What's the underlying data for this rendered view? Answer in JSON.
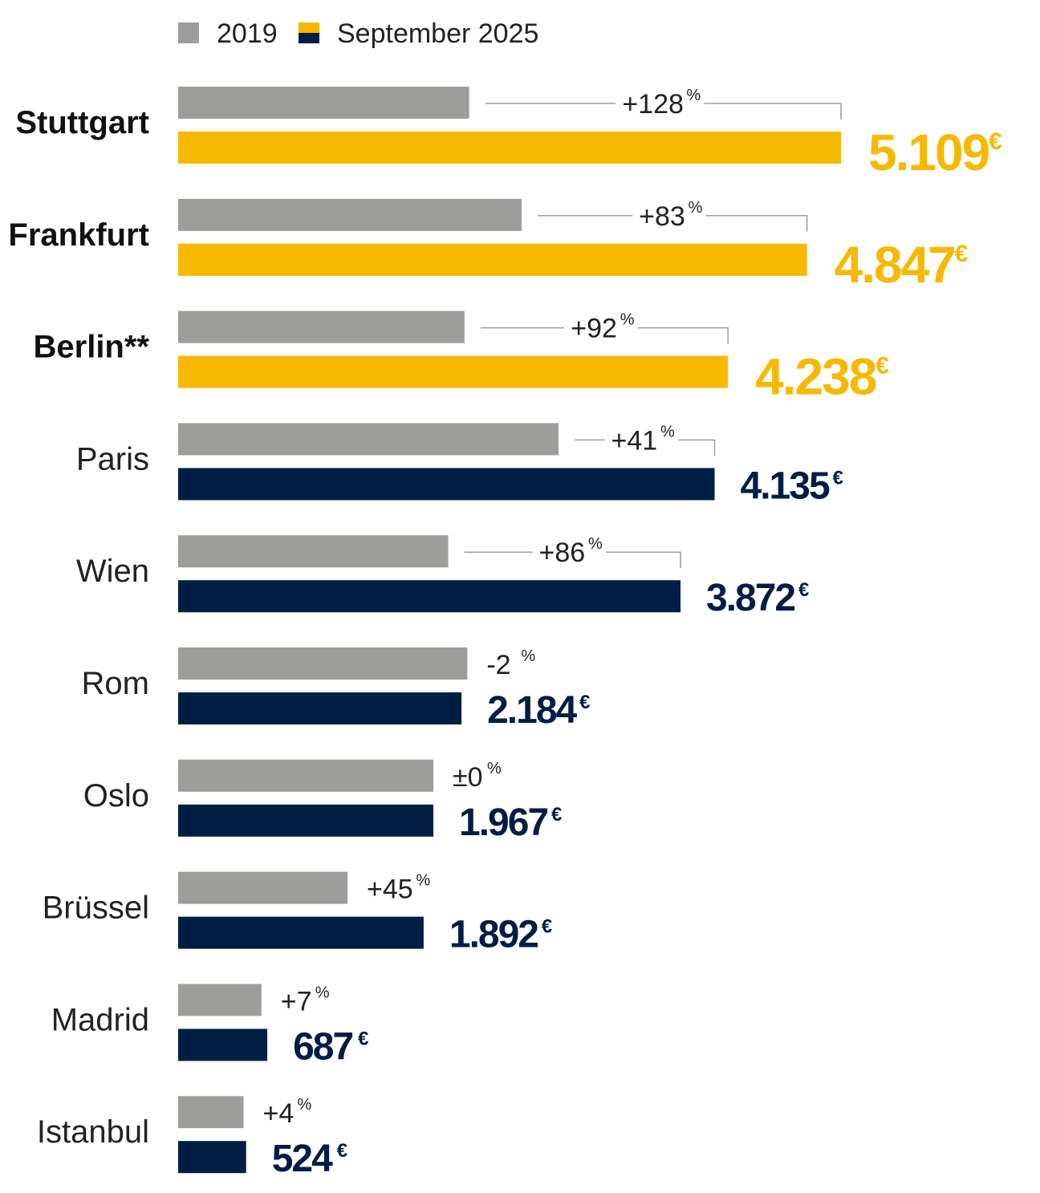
{
  "colors": {
    "bar_2019": "#9d9d9c",
    "bar_2025_highlight": "#f7b800",
    "bar_2025_default": "#001d45",
    "bracket_line": "#9d9d9c",
    "text_dark": "#111111"
  },
  "legend": [
    {
      "label": "2019",
      "color": "#9d9d9c"
    },
    {
      "label": "September 2025",
      "colors": [
        "#f7b800",
        "#001d45"
      ]
    }
  ],
  "chart_data": {
    "type": "bar",
    "orientation": "horizontal",
    "unit": "€",
    "change_unit": "%",
    "series": [
      {
        "name": "2019",
        "values": [
          2243,
          2648,
          2207,
          2932,
          2082,
          2229,
          1967,
          1305,
          642,
          504
        ]
      },
      {
        "name": "September 2025",
        "values": [
          5109,
          4847,
          4238,
          4135,
          3872,
          2184,
          1967,
          1892,
          687,
          524
        ]
      }
    ],
    "categories": [
      "Stuttgart",
      "Frankfurt",
      "Berlin**",
      "Paris",
      "Wien",
      "Rom",
      "Oslo",
      "Brüssel",
      "Madrid",
      "Istanbul"
    ],
    "rows": [
      {
        "city": "Stuttgart",
        "bold": true,
        "highlight": true,
        "value_2019": 2243,
        "value_2025": 5109,
        "value_label": "5.109",
        "change": "+128",
        "bracket": true
      },
      {
        "city": "Frankfurt",
        "bold": true,
        "highlight": true,
        "value_2019": 2648,
        "value_2025": 4847,
        "value_label": "4.847",
        "change": "+83",
        "bracket": true
      },
      {
        "city": "Berlin**",
        "bold": true,
        "highlight": true,
        "value_2019": 2207,
        "value_2025": 4238,
        "value_label": "4.238",
        "change": "+92",
        "bracket": true
      },
      {
        "city": "Paris",
        "bold": false,
        "highlight": false,
        "value_2019": 2932,
        "value_2025": 4135,
        "value_label": "4.135",
        "change": "+41",
        "bracket": true
      },
      {
        "city": "Wien",
        "bold": false,
        "highlight": false,
        "value_2019": 2082,
        "value_2025": 3872,
        "value_label": "3.872",
        "change": "+86",
        "bracket": true
      },
      {
        "city": "Rom",
        "bold": false,
        "highlight": false,
        "value_2019": 2229,
        "value_2025": 2184,
        "value_label": "2.184",
        "change": "-2",
        "bracket": false
      },
      {
        "city": "Oslo",
        "bold": false,
        "highlight": false,
        "value_2019": 1967,
        "value_2025": 1967,
        "value_label": "1.967",
        "change": "±0",
        "bracket": false
      },
      {
        "city": "Brüssel",
        "bold": false,
        "highlight": false,
        "value_2019": 1305,
        "value_2025": 1892,
        "value_label": "1.892",
        "change": "+45",
        "bracket": false
      },
      {
        "city": "Madrid",
        "bold": false,
        "highlight": false,
        "value_2019": 642,
        "value_2025": 687,
        "value_label": "687",
        "change": "+7",
        "bracket": false
      },
      {
        "city": "Istanbul",
        "bold": false,
        "highlight": false,
        "value_2019": 504,
        "value_2025": 524,
        "value_label": "524",
        "change": "+4",
        "bracket": false
      }
    ],
    "xlim": [
      0,
      5109
    ],
    "grid": false,
    "legend_position": "top-left"
  }
}
